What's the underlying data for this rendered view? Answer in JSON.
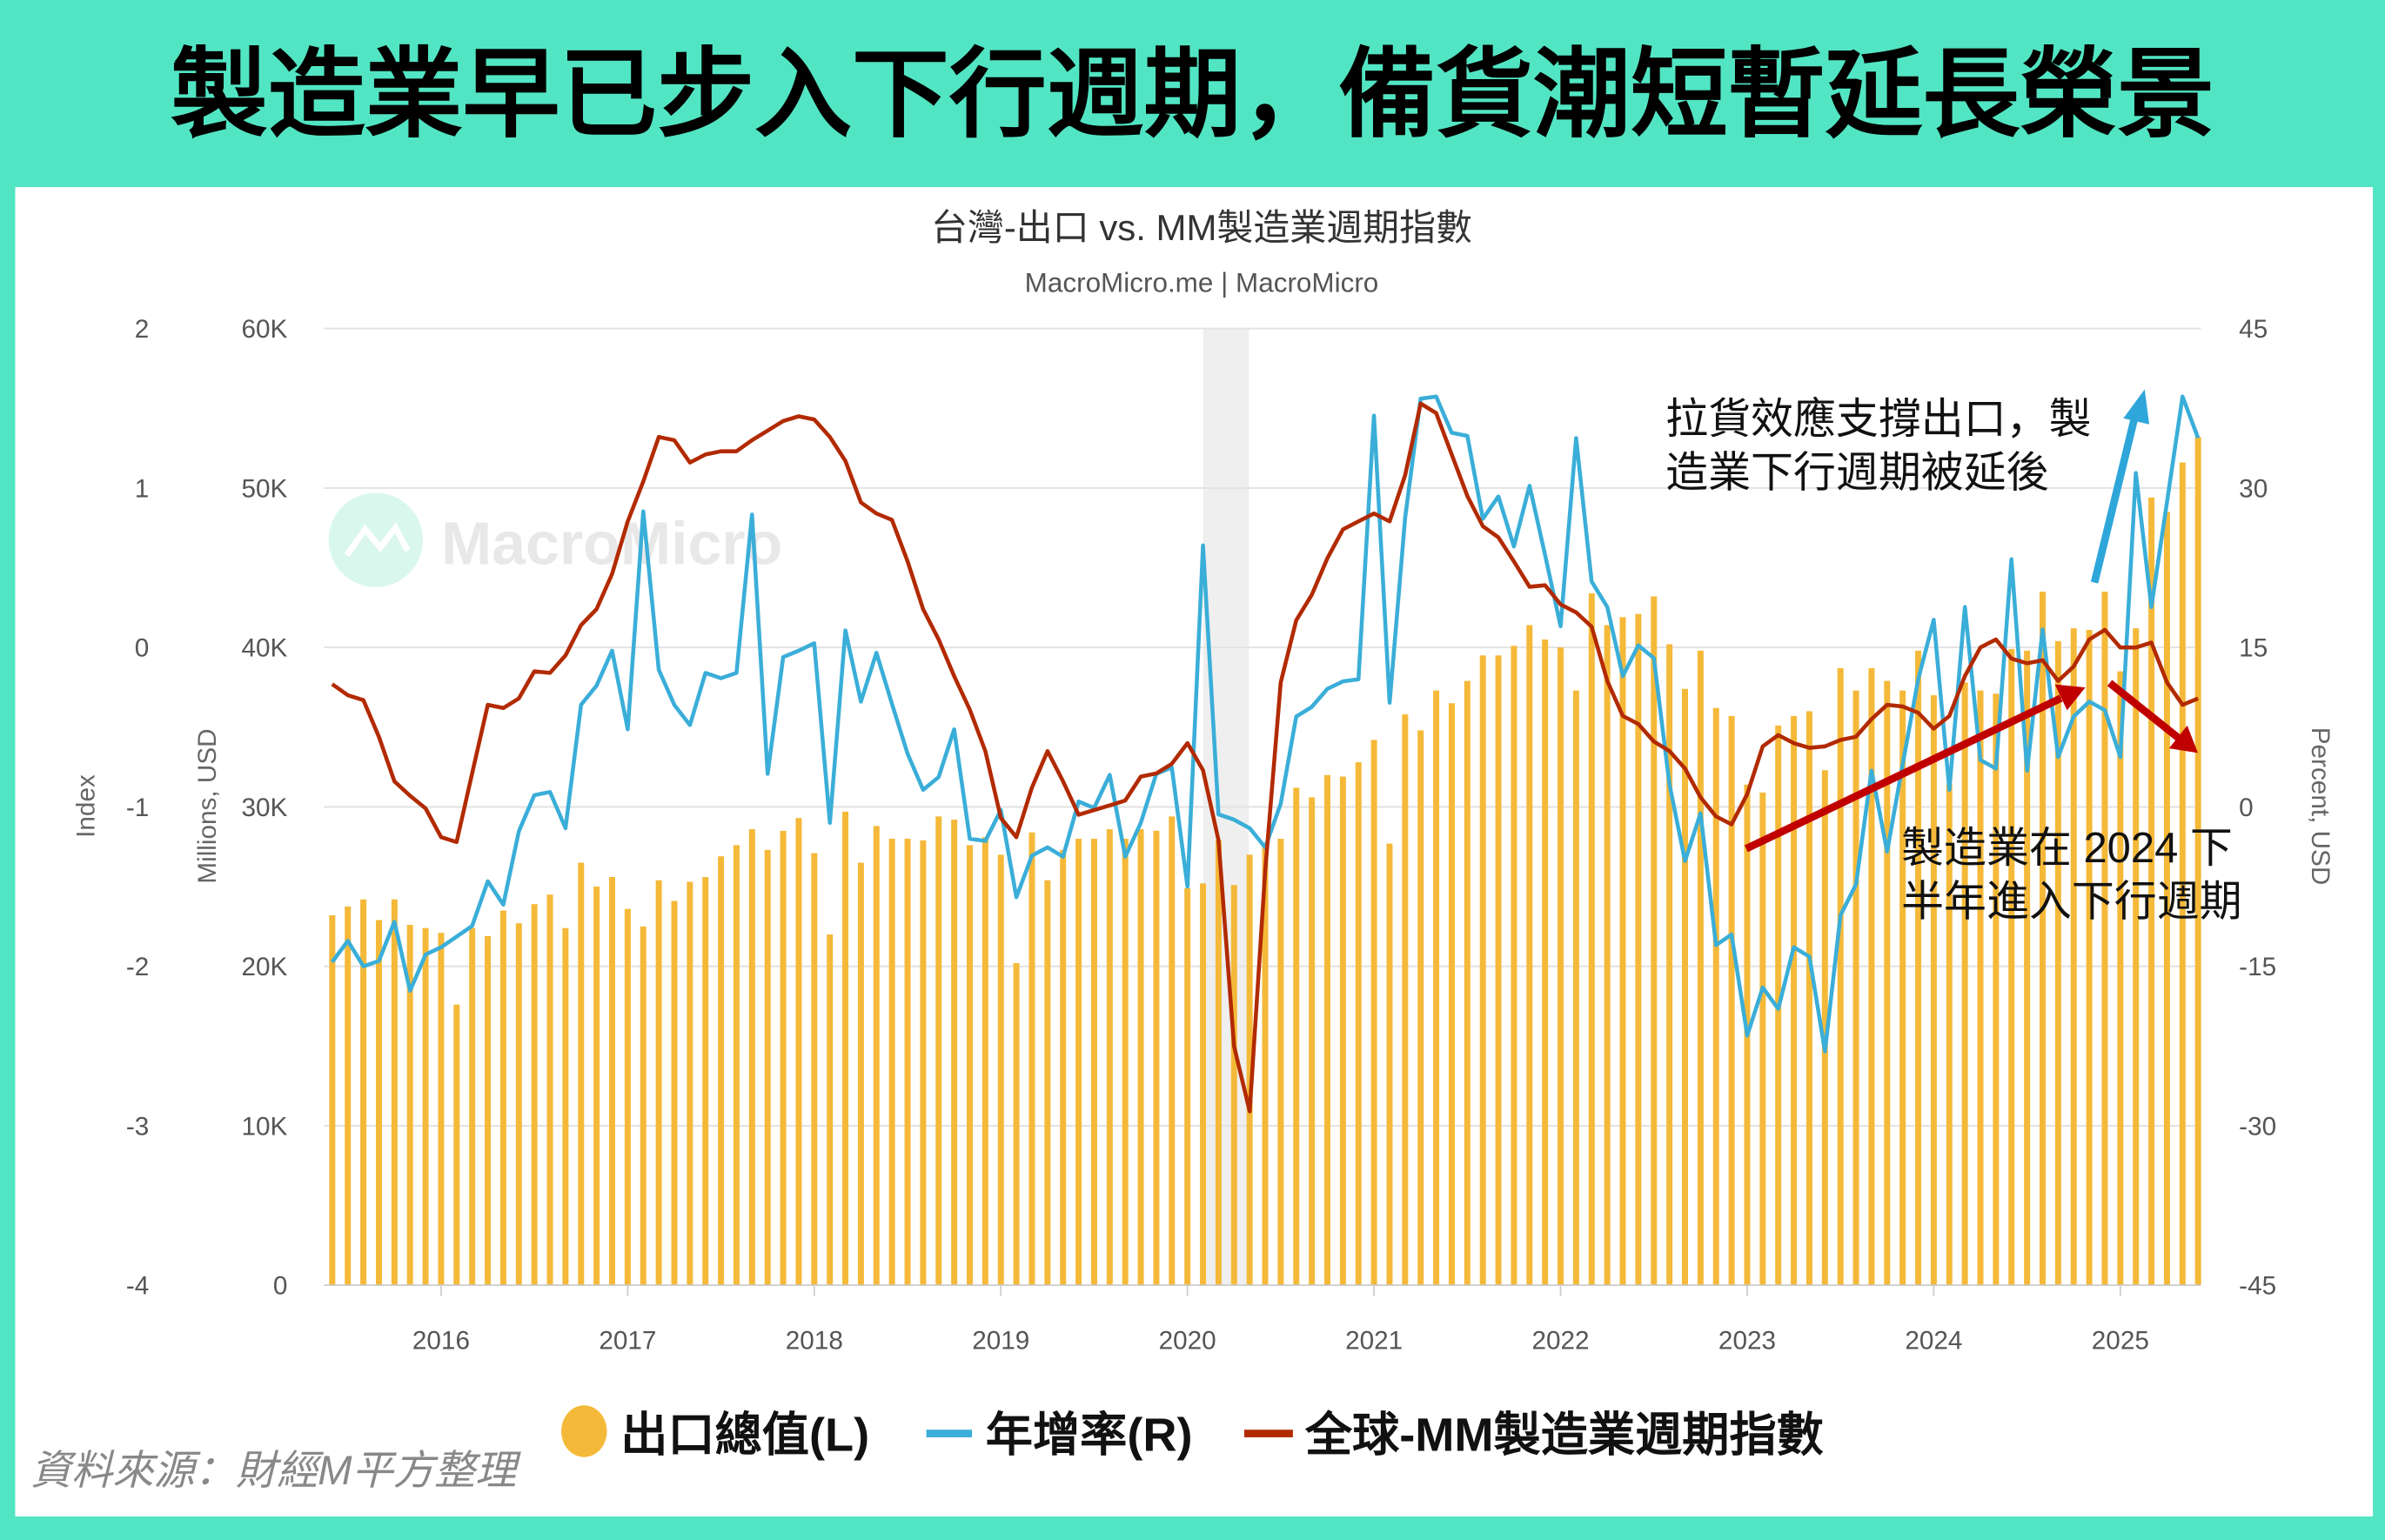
{
  "banner": {
    "title": "製造業早已步入下行週期，備貨潮短暫延長榮景"
  },
  "source": "資料來源：財經M平方整理",
  "watermark": "MacroMicro",
  "colors": {
    "background": "#52E5C3",
    "exports": "#F5B939",
    "yoy": "#3AAED8",
    "index": "#B22A00",
    "arrow_red": "#C00000",
    "arrow_blue": "#2EA6D9"
  },
  "annotations": {
    "upper": [
      "拉貨效應支撐出口，製",
      "造業下行週期被延後"
    ],
    "lower": [
      "製造業在 2024 下",
      "半年進入下行週期"
    ]
  },
  "chart_data": {
    "type": "bar+line",
    "title": "台灣-出口 vs. MM製造業週期指數",
    "subtitle": "MacroMicro.me | MacroMicro",
    "x_start": "2015-06",
    "frequency": "monthly",
    "x_ticks": [
      "2016",
      "2017",
      "2018",
      "2019",
      "2020",
      "2021",
      "2022",
      "2023",
      "2024",
      "2025"
    ],
    "shaded_period": [
      "2020-02",
      "2020-05"
    ],
    "grid": true,
    "legend_position": "bottom",
    "axes": {
      "index": {
        "label": "Index",
        "range": [
          -4,
          2
        ],
        "ticks": [
          "2",
          "1",
          "0",
          "-1",
          "-2",
          "-3",
          "-4"
        ]
      },
      "exports": {
        "label": "Millions, USD",
        "range": [
          0,
          60000
        ],
        "ticks": [
          "60K",
          "50K",
          "40K",
          "30K",
          "20K",
          "10K",
          "0"
        ]
      },
      "percent": {
        "label": "Percent, USD",
        "range": [
          -45,
          45
        ],
        "ticks": [
          "45",
          "30",
          "15",
          "0",
          "-15",
          "-30",
          "-45"
        ]
      }
    },
    "series": [
      {
        "name": "出口總值(L)",
        "type": "bar",
        "axis": "exports",
        "values": [
          23200,
          23750,
          24200,
          22900,
          24200,
          22600,
          22400,
          22100,
          17600,
          22400,
          21900,
          23500,
          22700,
          23900,
          24500,
          22400,
          26500,
          25000,
          25600,
          23600,
          22500,
          25400,
          24100,
          25300,
          25600,
          26900,
          27600,
          28600,
          27300,
          28500,
          29300,
          27100,
          22000,
          29700,
          26500,
          28800,
          28000,
          28000,
          27900,
          29400,
          29200,
          27600,
          28100,
          27000,
          20200,
          28400,
          25400,
          27300,
          28000,
          28000,
          28600,
          28000,
          28600,
          28500,
          29400,
          24900,
          25200,
          27900,
          25100,
          27000,
          27500,
          28000,
          31200,
          30600,
          32000,
          31900,
          32800,
          34200,
          27700,
          35800,
          34800,
          37300,
          36500,
          37900,
          39500,
          39500,
          40100,
          41400,
          40500,
          40000,
          37300,
          43400,
          41400,
          41900,
          42100,
          43200,
          40200,
          37400,
          39800,
          36200,
          35700,
          31400,
          30900,
          35100,
          35700,
          36000,
          32300,
          38700,
          37300,
          38700,
          37900,
          37300,
          39800,
          37000,
          31400,
          37800,
          37300,
          37100,
          39900,
          39800,
          43500,
          40400,
          41200,
          41100,
          43500,
          38500,
          41200,
          49400,
          48500,
          51600,
          53200
        ]
      },
      {
        "name": "年增率(R)",
        "type": "line",
        "axis": "percent",
        "values": [
          -14.6,
          -12.6,
          -15.0,
          -14.5,
          -10.8,
          -17.3,
          -13.9,
          -13.2,
          -12.2,
          -11.2,
          -7.0,
          -9.2,
          -2.3,
          1.1,
          1.4,
          -2.0,
          9.6,
          11.4,
          14.7,
          7.3,
          27.8,
          12.9,
          9.6,
          7.7,
          12.6,
          12.1,
          12.6,
          27.5,
          3.1,
          14.1,
          14.7,
          15.4,
          -1.5,
          16.6,
          9.9,
          14.5,
          9.7,
          5.0,
          1.6,
          2.8,
          7.3,
          -3.0,
          -3.2,
          -0.3,
          -8.5,
          -4.6,
          -3.8,
          -4.7,
          0.5,
          -0.1,
          3.0,
          -4.7,
          -1.5,
          3.1,
          3.7,
          -7.5,
          24.6,
          -0.7,
          -1.2,
          -2.0,
          -3.8,
          0.3,
          8.5,
          9.4,
          11.1,
          11.8,
          12.0,
          36.8,
          9.8,
          27.2,
          38.4,
          38.6,
          35.2,
          34.9,
          27.1,
          29.2,
          24.5,
          30.2,
          23.7,
          17.0,
          34.7,
          21.2,
          18.8,
          12.3,
          15.2,
          14.0,
          2.1,
          -5.1,
          -0.6,
          -13.0,
          -12.0,
          -21.5,
          -17.0,
          -19.0,
          -13.2,
          -14.1,
          -23.0,
          -10.2,
          -7.3,
          3.4,
          -4.2,
          4.0,
          12.0,
          17.6,
          1.6,
          18.8,
          4.4,
          3.6,
          23.3,
          3.4,
          16.7,
          4.7,
          8.5,
          9.9,
          9.1,
          4.7,
          31.4,
          18.8,
          28.7,
          38.6,
          34.7
        ]
      },
      {
        "name": "全球-MM製造業週期指數",
        "type": "line",
        "axis": "index",
        "values": [
          -0.23,
          -0.3,
          -0.33,
          -0.56,
          -0.84,
          -0.93,
          -1.01,
          -1.19,
          -1.22,
          -0.79,
          -0.36,
          -0.38,
          -0.32,
          -0.15,
          -0.16,
          -0.05,
          0.14,
          0.24,
          0.46,
          0.79,
          1.04,
          1.32,
          1.3,
          1.16,
          1.21,
          1.23,
          1.23,
          1.3,
          1.36,
          1.42,
          1.45,
          1.43,
          1.32,
          1.17,
          0.91,
          0.84,
          0.8,
          0.54,
          0.24,
          0.05,
          -0.18,
          -0.39,
          -0.65,
          -1.07,
          -1.19,
          -0.88,
          -0.65,
          -0.84,
          -1.05,
          -1.02,
          -0.99,
          -0.96,
          -0.81,
          -0.79,
          -0.73,
          -0.6,
          -0.77,
          -1.21,
          -2.5,
          -2.91,
          -1.4,
          -0.22,
          0.17,
          0.33,
          0.56,
          0.74,
          0.79,
          0.84,
          0.79,
          1.08,
          1.53,
          1.47,
          1.21,
          0.95,
          0.76,
          0.69,
          0.54,
          0.38,
          0.39,
          0.27,
          0.22,
          0.13,
          -0.21,
          -0.43,
          -0.48,
          -0.59,
          -0.65,
          -0.76,
          -0.94,
          -1.06,
          -1.11,
          -0.92,
          -0.62,
          -0.55,
          -0.6,
          -0.63,
          -0.62,
          -0.58,
          -0.56,
          -0.45,
          -0.36,
          -0.37,
          -0.41,
          -0.51,
          -0.43,
          -0.18,
          0.0,
          0.05,
          -0.07,
          -0.1,
          -0.08,
          -0.21,
          -0.12,
          0.05,
          0.11,
          0.0,
          0.0,
          0.03,
          -0.22,
          -0.36,
          -0.32
        ]
      }
    ]
  }
}
